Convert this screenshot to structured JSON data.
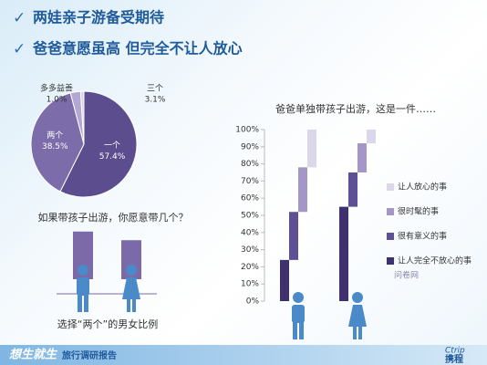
{
  "header": {
    "lines": [
      "两娃亲子游备受期待",
      "爸爸意愿虽高 但完全不让人放心"
    ]
  },
  "chart_data": [
    {
      "type": "pie",
      "categories": [
        "一个",
        "两个",
        "三个",
        "多多益善"
      ],
      "values": [
        57.4,
        38.5,
        3.1,
        1.0
      ],
      "value_labels": [
        "57.4%",
        "38.5%",
        "3.1%",
        "1.0%"
      ],
      "colors": [
        "#5c4e8e",
        "#7c6ca9",
        "#b3a8d2",
        "#d9d2ea"
      ],
      "caption": "如果带孩子出游，你愿意带几个？"
    },
    {
      "type": "bar",
      "categories": [
        null,
        null
      ],
      "values": [
        55,
        45
      ],
      "color": "#7b69a8",
      "caption": "选择“两个”的男女比例"
    },
    {
      "type": "waterfall",
      "title": "爸爸单独带孩子出游，这是一件……",
      "categories": [
        null,
        null
      ],
      "series": [
        {
          "name": "让人完全不放心的事",
          "color": "#3f3170",
          "values": [
            24,
            55
          ]
        },
        {
          "name": "很有意义的事",
          "color": "#5f4f94",
          "values": [
            28,
            20
          ]
        },
        {
          "name": "很时髦的事",
          "color": "#a497c8",
          "values": [
            26,
            17
          ]
        },
        {
          "name": "让人放心的事",
          "color": "#dcd6ea",
          "values": [
            22,
            8
          ]
        }
      ],
      "ylim": [
        0,
        100
      ],
      "yticks": [
        {
          "value": 0,
          "label": "0%"
        },
        {
          "value": 10,
          "label": "10%"
        },
        {
          "value": 20,
          "label": "20%"
        },
        {
          "value": 30,
          "label": "30%"
        },
        {
          "value": 40,
          "label": "40%"
        },
        {
          "value": 50,
          "label": "50%"
        },
        {
          "value": 60,
          "label": "60%"
        },
        {
          "value": 70,
          "label": "70%"
        },
        {
          "value": 80,
          "label": "80%"
        },
        {
          "value": 90,
          "label": "90%"
        },
        {
          "value": 100,
          "label": "100%"
        }
      ],
      "source": "问卷网"
    }
  ],
  "footer": {
    "slogan": "想生就生",
    "report": "旅行调研报告",
    "logo_en": "Ctrip",
    "logo_cn": "携程"
  }
}
